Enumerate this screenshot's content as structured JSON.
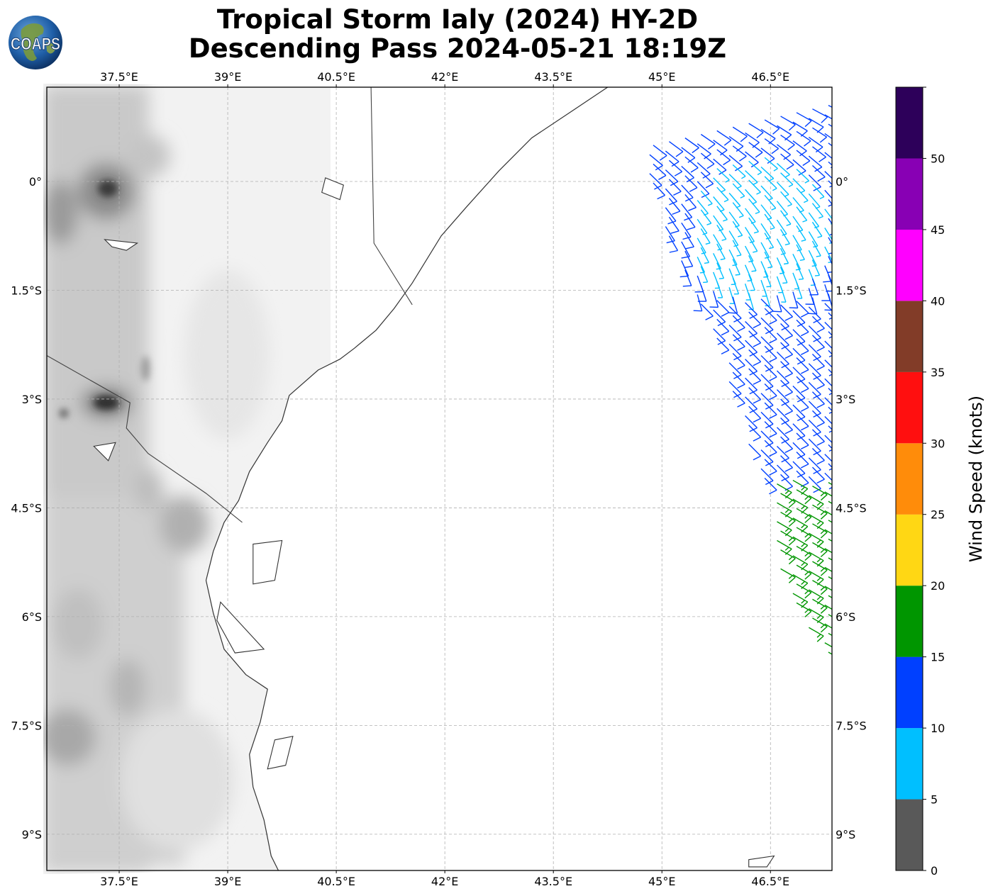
{
  "title": {
    "line1": "Tropical Storm Ialy (2024) HY-2D",
    "line2": "Descending Pass 2024-05-21 18:19Z"
  },
  "logo": {
    "text": "COAPS",
    "icon": "globe-logo-icon"
  },
  "map": {
    "lon_range": [
      36.5,
      47.35
    ],
    "lat_range": [
      -9.5,
      1.3
    ],
    "lon_ticks": [
      {
        "value": 37.5,
        "label": "37.5°E"
      },
      {
        "value": 39.0,
        "label": "39°E"
      },
      {
        "value": 40.5,
        "label": "40.5°E"
      },
      {
        "value": 42.0,
        "label": "42°E"
      },
      {
        "value": 43.5,
        "label": "43.5°E"
      },
      {
        "value": 45.0,
        "label": "45°E"
      },
      {
        "value": 46.5,
        "label": "46.5°E"
      }
    ],
    "lat_ticks": [
      {
        "value": 0.0,
        "label": "0°"
      },
      {
        "value": -1.5,
        "label": "1.5°S"
      },
      {
        "value": -3.0,
        "label": "3°S"
      },
      {
        "value": -4.5,
        "label": "4.5°S"
      },
      {
        "value": -6.0,
        "label": "6°S"
      },
      {
        "value": -7.5,
        "label": "7.5°S"
      },
      {
        "value": -9.0,
        "label": "9°S"
      }
    ],
    "gridlines": true,
    "land_shading": "grayscale-topography",
    "coastline": [
      [
        44.25,
        1.3
      ],
      [
        43.8,
        1.0
      ],
      [
        43.2,
        0.6
      ],
      [
        42.75,
        0.15
      ],
      [
        42.3,
        -0.35
      ],
      [
        41.95,
        -0.75
      ],
      [
        41.55,
        -1.4
      ],
      [
        41.3,
        -1.75
      ],
      [
        41.05,
        -2.05
      ],
      [
        40.75,
        -2.3
      ],
      [
        40.55,
        -2.45
      ],
      [
        40.25,
        -2.6
      ],
      [
        39.85,
        -2.95
      ],
      [
        39.75,
        -3.3
      ],
      [
        39.55,
        -3.6
      ],
      [
        39.3,
        -4.0
      ],
      [
        39.15,
        -4.4
      ],
      [
        38.95,
        -4.7
      ],
      [
        38.8,
        -5.1
      ],
      [
        38.7,
        -5.5
      ],
      [
        38.8,
        -5.95
      ],
      [
        38.95,
        -6.45
      ],
      [
        39.25,
        -6.8
      ],
      [
        39.55,
        -7.0
      ],
      [
        39.45,
        -7.45
      ],
      [
        39.3,
        -7.9
      ],
      [
        39.35,
        -8.35
      ],
      [
        39.5,
        -8.8
      ],
      [
        39.6,
        -9.3
      ],
      [
        39.7,
        -9.5
      ]
    ],
    "borders": [
      [
        [
          40.98,
          1.3
        ],
        [
          41.02,
          -0.85
        ],
        [
          41.55,
          -1.7
        ]
      ],
      [
        [
          36.5,
          -2.4
        ],
        [
          37.65,
          -3.05
        ],
        [
          37.6,
          -3.4
        ],
        [
          37.9,
          -3.75
        ],
        [
          38.7,
          -4.3
        ],
        [
          39.2,
          -4.7
        ]
      ]
    ],
    "islands": [
      [
        [
          40.3,
          -0.15
        ],
        [
          40.55,
          -0.25
        ],
        [
          40.6,
          -0.05
        ],
        [
          40.35,
          0.05
        ]
      ],
      [
        [
          37.3,
          -0.8
        ],
        [
          37.75,
          -0.85
        ],
        [
          37.6,
          -0.95
        ],
        [
          37.4,
          -0.9
        ]
      ],
      [
        [
          39.35,
          -5.0
        ],
        [
          39.75,
          -4.95
        ],
        [
          39.65,
          -5.5
        ],
        [
          39.35,
          -5.55
        ]
      ],
      [
        [
          38.9,
          -5.8
        ],
        [
          39.5,
          -6.45
        ],
        [
          39.1,
          -6.5
        ],
        [
          38.85,
          -6.05
        ]
      ],
      [
        [
          39.65,
          -7.7
        ],
        [
          39.9,
          -7.65
        ],
        [
          39.8,
          -8.05
        ],
        [
          39.55,
          -8.1
        ]
      ],
      [
        [
          37.15,
          -3.65
        ],
        [
          37.45,
          -3.6
        ],
        [
          37.35,
          -3.85
        ]
      ],
      [
        [
          46.2,
          -9.35
        ],
        [
          46.55,
          -9.3
        ],
        [
          46.45,
          -9.45
        ],
        [
          46.2,
          -9.45
        ]
      ]
    ]
  },
  "wind_barbs": {
    "swath_left_edge": [
      [
        44.5,
        1.0
      ],
      [
        45.2,
        -1.2
      ],
      [
        45.7,
        -2.1
      ],
      [
        46.45,
        -4.4
      ],
      [
        46.65,
        -5.4
      ],
      [
        47.25,
        -6.6
      ]
    ],
    "swath_right_edge": [
      47.35
    ]
  },
  "colorbar": {
    "label": "Wind Speed (knots)",
    "tick_labels": [
      "0",
      "5",
      "10",
      "15",
      "20",
      "25",
      "30",
      "35",
      "40",
      "45",
      "50"
    ],
    "bins": [
      {
        "from": 0,
        "to": 5,
        "color": "#595959"
      },
      {
        "from": 5,
        "to": 10,
        "color": "#00bfff"
      },
      {
        "from": 10,
        "to": 15,
        "color": "#0040ff"
      },
      {
        "from": 15,
        "to": 20,
        "color": "#009600"
      },
      {
        "from": 20,
        "to": 25,
        "color": "#ffd714"
      },
      {
        "from": 25,
        "to": 30,
        "color": "#ff8c0a"
      },
      {
        "from": 30,
        "to": 35,
        "color": "#ff0f0f"
      },
      {
        "from": 35,
        "to": 40,
        "color": "#823c28"
      },
      {
        "from": 40,
        "to": 45,
        "color": "#ff00ff"
      },
      {
        "from": 45,
        "to": 50,
        "color": "#8800b4"
      },
      {
        "from": 50,
        "to": 55,
        "color": "#2d005a"
      }
    ]
  }
}
